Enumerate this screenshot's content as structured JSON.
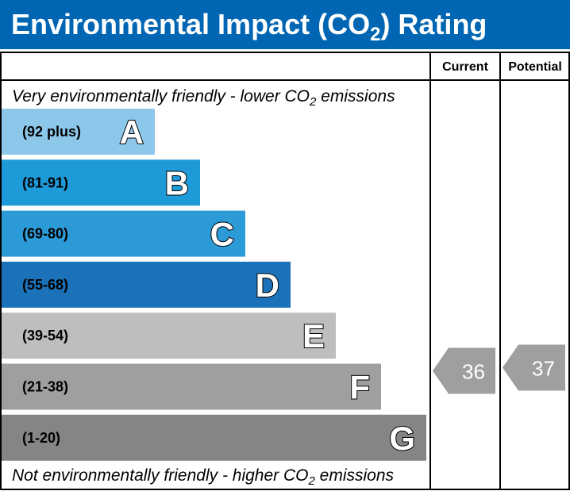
{
  "header": {
    "title_main": "Environmental Impact (CO",
    "title_sub": "2",
    "title_end": ") Rating",
    "background": "#0066b3"
  },
  "columns": {
    "current": "Current",
    "potential": "Potential"
  },
  "notes": {
    "top_main": "Very environmentally friendly - lower CO",
    "top_sub": "2",
    "top_end": " emissions",
    "bottom_main": "Not environmentally friendly - higher CO",
    "bottom_sub": "2",
    "bottom_end": " emissions"
  },
  "chart_data": {
    "type": "bar",
    "categories": [
      "A",
      "B",
      "C",
      "D",
      "E",
      "F",
      "G"
    ],
    "bands": [
      {
        "letter": "A",
        "range": "(92 plus)",
        "min": 92,
        "max": 100,
        "color": "#8dc8ea"
      },
      {
        "letter": "B",
        "range": "(81-91)",
        "min": 81,
        "max": 91,
        "color": "#1f9ad9"
      },
      {
        "letter": "C",
        "range": "(69-80)",
        "min": 69,
        "max": 80,
        "color": "#2c9ad6"
      },
      {
        "letter": "D",
        "range": "(55-68)",
        "min": 55,
        "max": 68,
        "color": "#1b72b8"
      },
      {
        "letter": "E",
        "range": "(39-54)",
        "min": 39,
        "max": 54,
        "color": "#bfbebc"
      },
      {
        "letter": "F",
        "range": "(21-38)",
        "min": 21,
        "max": 38,
        "color": "#a09fa0"
      },
      {
        "letter": "G",
        "range": "(1-20)",
        "min": 1,
        "max": 20,
        "color": "#858585"
      }
    ],
    "current": {
      "value": 36,
      "band": "F",
      "color": "#a09fa0"
    },
    "potential": {
      "value": 37,
      "band": "F",
      "color": "#a09fa0"
    }
  }
}
